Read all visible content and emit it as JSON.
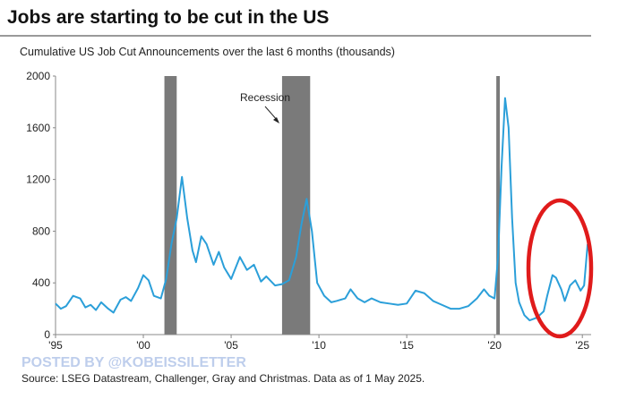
{
  "chart_data": {
    "type": "line",
    "title": "Jobs are starting to be cut in the US",
    "subtitle": "Cumulative US Job Cut Announcements over the last 6 months (thousands)",
    "annotation": "Recession",
    "watermark": "POSTED BY @KOBEISSILETTER",
    "source": "Source: LSEG Datastream, Challenger, Gray and Christmas. Data as of 1 May 2025.",
    "recessions": [
      [
        2001.2,
        2001.9
      ],
      [
        2007.9,
        2009.5
      ],
      [
        2020.1,
        2020.3
      ]
    ],
    "recession_color": "#7a7a7a",
    "xlim": [
      1995,
      2025.5
    ],
    "xticks": [
      {
        "value": 1995,
        "label": "'95"
      },
      {
        "value": 2000,
        "label": "'00"
      },
      {
        "value": 2005,
        "label": "'05"
      },
      {
        "value": 2010,
        "label": "'10"
      },
      {
        "value": 2015,
        "label": "'15"
      },
      {
        "value": 2020,
        "label": "'20"
      },
      {
        "value": 2025,
        "label": "'25"
      }
    ],
    "ylim": [
      0,
      2000
    ],
    "yticks": [
      0,
      400,
      800,
      1200,
      1600,
      2000
    ],
    "grid": false,
    "series": [
      {
        "color": "#2b9fd9",
        "x": [
          1995.0,
          1995.3,
          1995.6,
          1996.0,
          1996.4,
          1996.7,
          1997.0,
          1997.3,
          1997.6,
          1998.0,
          1998.3,
          1998.7,
          1999.0,
          1999.3,
          1999.7,
          2000.0,
          2000.3,
          2000.6,
          2001.0,
          2001.3,
          2001.6,
          2001.9,
          2002.2,
          2002.5,
          2002.8,
          2003.0,
          2003.3,
          2003.6,
          2004.0,
          2004.3,
          2004.6,
          2005.0,
          2005.5,
          2005.9,
          2006.3,
          2006.7,
          2007.0,
          2007.5,
          2007.9,
          2008.3,
          2008.7,
          2009.0,
          2009.3,
          2009.6,
          2009.9,
          2010.3,
          2010.7,
          2011.0,
          2011.5,
          2011.8,
          2012.2,
          2012.6,
          2013.0,
          2013.5,
          2014.0,
          2014.5,
          2015.0,
          2015.5,
          2016.0,
          2016.5,
          2017.0,
          2017.5,
          2018.0,
          2018.5,
          2019.0,
          2019.4,
          2019.7,
          2020.0,
          2020.2,
          2020.4,
          2020.6,
          2020.8,
          2021.0,
          2021.2,
          2021.4,
          2021.7,
          2022.0,
          2022.4,
          2022.8,
          2023.0,
          2023.3,
          2023.5,
          2023.8,
          2024.0,
          2024.3,
          2024.6,
          2024.9,
          2025.1,
          2025.3
        ],
        "values": [
          240,
          200,
          220,
          300,
          280,
          210,
          230,
          190,
          250,
          200,
          170,
          270,
          290,
          260,
          360,
          460,
          420,
          300,
          280,
          430,
          700,
          900,
          1220,
          900,
          650,
          560,
          760,
          700,
          540,
          640,
          520,
          430,
          600,
          500,
          540,
          410,
          450,
          380,
          390,
          420,
          600,
          850,
          1050,
          800,
          400,
          300,
          250,
          260,
          280,
          350,
          280,
          250,
          280,
          250,
          240,
          230,
          240,
          340,
          320,
          260,
          230,
          200,
          200,
          220,
          280,
          350,
          300,
          280,
          600,
          1300,
          1830,
          1600,
          900,
          400,
          250,
          150,
          110,
          130,
          180,
          300,
          460,
          440,
          350,
          260,
          380,
          420,
          340,
          380,
          700
        ]
      }
    ]
  }
}
